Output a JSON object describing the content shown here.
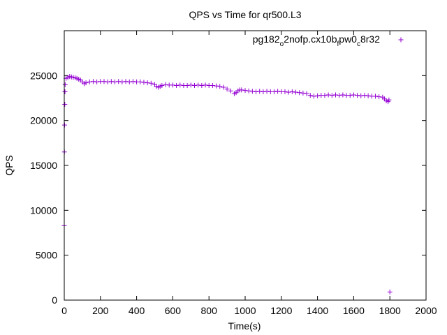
{
  "chart_data": {
    "type": "scatter",
    "title": "QPS vs Time for qr500.L3",
    "xlabel": "Time(s)",
    "ylabel": "QPS",
    "xlim": [
      0,
      2000
    ],
    "ylim": [
      0,
      30000
    ],
    "xticks": [
      0,
      200,
      400,
      600,
      800,
      1000,
      1200,
      1400,
      1600,
      1800,
      2000
    ],
    "yticks": [
      0,
      5000,
      10000,
      15000,
      20000,
      25000
    ],
    "xtick_labels": [
      "0",
      "200",
      "400",
      "600",
      "800",
      "1000",
      "1200",
      "1400",
      "1600",
      "1800",
      "2000"
    ],
    "ytick_labels": [
      "0",
      "5000",
      "10000",
      "15000",
      "20000",
      "25000"
    ],
    "grid": false,
    "legend_position": "top-right",
    "marker": "+",
    "series": [
      {
        "name": "pg182_o2nofp.cx10b_fpw0_c8r32",
        "legend_parts": [
          "pg182",
          "o",
          "2nofp.cx10b",
          "f",
          "pw0",
          "c",
          "8r32"
        ],
        "color": "#9400d3",
        "points": [
          [
            0,
            8300
          ],
          [
            1,
            16500
          ],
          [
            2,
            19500
          ],
          [
            3,
            21800
          ],
          [
            4,
            23200
          ],
          [
            5,
            24000
          ],
          [
            10,
            24700
          ],
          [
            20,
            24800
          ],
          [
            30,
            24900
          ],
          [
            40,
            24850
          ],
          [
            50,
            24800
          ],
          [
            60,
            24750
          ],
          [
            70,
            24700
          ],
          [
            80,
            24600
          ],
          [
            90,
            24500
          ],
          [
            100,
            24300
          ],
          [
            110,
            24100
          ],
          [
            120,
            24200
          ],
          [
            140,
            24300
          ],
          [
            160,
            24350
          ],
          [
            180,
            24300
          ],
          [
            200,
            24350
          ],
          [
            220,
            24350
          ],
          [
            240,
            24300
          ],
          [
            260,
            24350
          ],
          [
            280,
            24300
          ],
          [
            300,
            24350
          ],
          [
            320,
            24300
          ],
          [
            340,
            24350
          ],
          [
            360,
            24300
          ],
          [
            380,
            24350
          ],
          [
            400,
            24300
          ],
          [
            420,
            24300
          ],
          [
            440,
            24250
          ],
          [
            460,
            24200
          ],
          [
            480,
            24150
          ],
          [
            500,
            24000
          ],
          [
            510,
            23800
          ],
          [
            520,
            23700
          ],
          [
            530,
            23800
          ],
          [
            540,
            23900
          ],
          [
            560,
            24000
          ],
          [
            580,
            23950
          ],
          [
            600,
            23950
          ],
          [
            620,
            23900
          ],
          [
            640,
            23950
          ],
          [
            660,
            23900
          ],
          [
            680,
            23900
          ],
          [
            700,
            23950
          ],
          [
            720,
            23900
          ],
          [
            740,
            23950
          ],
          [
            760,
            23900
          ],
          [
            780,
            23950
          ],
          [
            800,
            23900
          ],
          [
            820,
            23900
          ],
          [
            840,
            23850
          ],
          [
            860,
            23800
          ],
          [
            880,
            23700
          ],
          [
            900,
            23500
          ],
          [
            920,
            23300
          ],
          [
            940,
            23000
          ],
          [
            950,
            23100
          ],
          [
            960,
            23300
          ],
          [
            970,
            23400
          ],
          [
            980,
            23400
          ],
          [
            1000,
            23350
          ],
          [
            1020,
            23300
          ],
          [
            1040,
            23250
          ],
          [
            1060,
            23200
          ],
          [
            1080,
            23250
          ],
          [
            1100,
            23200
          ],
          [
            1120,
            23250
          ],
          [
            1140,
            23200
          ],
          [
            1160,
            23200
          ],
          [
            1180,
            23250
          ],
          [
            1200,
            23200
          ],
          [
            1220,
            23200
          ],
          [
            1240,
            23150
          ],
          [
            1260,
            23200
          ],
          [
            1280,
            23150
          ],
          [
            1300,
            23100
          ],
          [
            1320,
            23050
          ],
          [
            1340,
            23000
          ],
          [
            1360,
            22800
          ],
          [
            1380,
            22700
          ],
          [
            1400,
            22750
          ],
          [
            1420,
            22800
          ],
          [
            1440,
            22800
          ],
          [
            1460,
            22850
          ],
          [
            1480,
            22800
          ],
          [
            1500,
            22850
          ],
          [
            1520,
            22800
          ],
          [
            1540,
            22850
          ],
          [
            1560,
            22800
          ],
          [
            1580,
            22800
          ],
          [
            1600,
            22850
          ],
          [
            1620,
            22800
          ],
          [
            1640,
            22750
          ],
          [
            1660,
            22800
          ],
          [
            1680,
            22750
          ],
          [
            1700,
            22700
          ],
          [
            1720,
            22700
          ],
          [
            1740,
            22650
          ],
          [
            1760,
            22600
          ],
          [
            1770,
            22400
          ],
          [
            1780,
            22200
          ],
          [
            1790,
            22100
          ],
          [
            1795,
            22300
          ],
          [
            1800,
            900
          ]
        ]
      }
    ]
  }
}
